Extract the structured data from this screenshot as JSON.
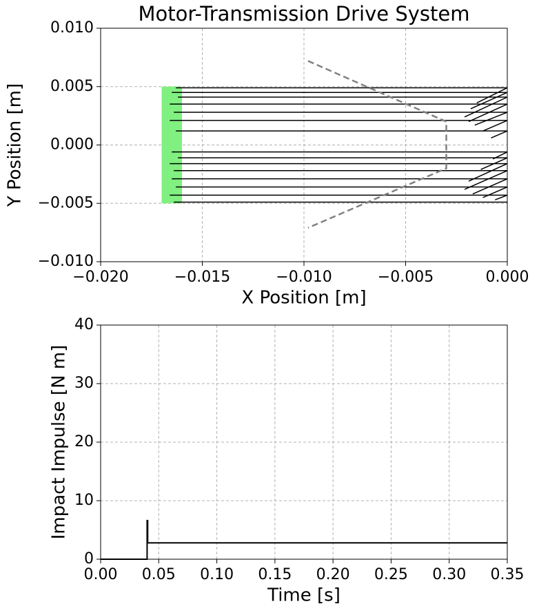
{
  "chart_data": [
    {
      "type": "trajectory",
      "title": "Motor-Transmission Drive System",
      "xlabel": "X Position [m]",
      "ylabel": "Y Position [m]",
      "xlim": [
        -0.02,
        0
      ],
      "ylim": [
        -0.01,
        0.01
      ],
      "xticks": [
        {
          "value": -0.02,
          "label": "−0.020"
        },
        {
          "value": -0.015,
          "label": "−0.015"
        },
        {
          "value": -0.01,
          "label": "−0.010"
        },
        {
          "value": -0.005,
          "label": "−0.005"
        },
        {
          "value": 0,
          "label": "0.000"
        }
      ],
      "yticks": [
        {
          "value": -0.01,
          "label": "−0.010"
        },
        {
          "value": -0.005,
          "label": "−0.005"
        },
        {
          "value": 0,
          "label": "0.000"
        },
        {
          "value": 0.005,
          "label": "0.005"
        },
        {
          "value": 0.01,
          "label": "0.010"
        }
      ],
      "grid": true,
      "region": {
        "x": [
          -0.017,
          -0.016
        ],
        "y": [
          -0.005,
          0.005
        ],
        "color": "#80f080"
      },
      "boundary": {
        "x": [
          -0.0098,
          -0.003,
          -0.003,
          -0.0098
        ],
        "y": [
          0.0072,
          0.002,
          -0.002,
          -0.0071
        ],
        "color": "#808080"
      },
      "path_color": "#000000",
      "paths": [
        {
          "x": [
            -0.0163,
            0,
            -0.0015
          ],
          "y": [
            0.0049,
            0.0049,
            0.0036
          ]
        },
        {
          "x": [
            -0.0165,
            0,
            -0.0018
          ],
          "y": [
            0.0045,
            0.0045,
            0.0031
          ]
        },
        {
          "x": [
            -0.0162,
            0,
            -0.0021
          ],
          "y": [
            0.0041,
            0.0041,
            0.0024
          ]
        },
        {
          "x": [
            -0.0166,
            0,
            -0.0019
          ],
          "y": [
            0.0035,
            0.0035,
            0.002
          ]
        },
        {
          "x": [
            -0.0164,
            0,
            -0.0016
          ],
          "y": [
            0.0028,
            0.0028,
            0.0017
          ]
        },
        {
          "x": [
            -0.0166,
            0,
            -0.0012
          ],
          "y": [
            0.0021,
            0.0021,
            0.0012
          ]
        },
        {
          "x": [
            -0.0163,
            0,
            -0.0008
          ],
          "y": [
            0.0012,
            0.0012,
            0.0006
          ]
        },
        {
          "x": [
            -0.0165,
            0,
            -0.0007
          ],
          "y": [
            -0.0006,
            -0.0006,
            -0.0012
          ]
        },
        {
          "x": [
            -0.0162,
            0,
            -0.0013
          ],
          "y": [
            -0.0011,
            -0.0011,
            -0.0021
          ]
        },
        {
          "x": [
            -0.0166,
            0,
            -0.0019
          ],
          "y": [
            -0.0016,
            -0.0016,
            -0.0031
          ]
        },
        {
          "x": [
            -0.0164,
            0,
            -0.0021
          ],
          "y": [
            -0.0022,
            -0.0022,
            -0.0038
          ]
        },
        {
          "x": [
            -0.0165,
            0,
            -0.0017
          ],
          "y": [
            -0.0029,
            -0.0029,
            -0.0042
          ]
        },
        {
          "x": [
            -0.0163,
            0,
            -0.0012
          ],
          "y": [
            -0.0036,
            -0.0036,
            -0.0045
          ]
        },
        {
          "x": [
            -0.0166,
            0,
            -0.0006
          ],
          "y": [
            -0.0043,
            -0.0043,
            -0.0047
          ]
        },
        {
          "x": [
            -0.0164,
            0
          ],
          "y": [
            -0.0049,
            -0.0049
          ]
        }
      ]
    },
    {
      "type": "line",
      "xlabel": "Time [s]",
      "ylabel": "Impact Impulse [N m]",
      "xlim": [
        0,
        0.35
      ],
      "ylim": [
        0,
        40
      ],
      "xticks": [
        {
          "value": 0,
          "label": "0.00"
        },
        0.05,
        {
          "value": 0.1,
          "label": "0.10"
        },
        0.15,
        {
          "value": 0.2,
          "label": "0.20"
        },
        0.25,
        {
          "value": 0.3,
          "label": "0.30"
        },
        0.35
      ],
      "yticks": [
        0,
        10,
        20,
        30,
        40
      ],
      "grid": true,
      "series": [
        {
          "color": "#000000",
          "x": [
            0,
            0.04,
            0.04,
            0.0405,
            0.0405,
            0.35
          ],
          "values": [
            0,
            0,
            6.6,
            6.6,
            2.8,
            2.8
          ]
        }
      ]
    }
  ]
}
